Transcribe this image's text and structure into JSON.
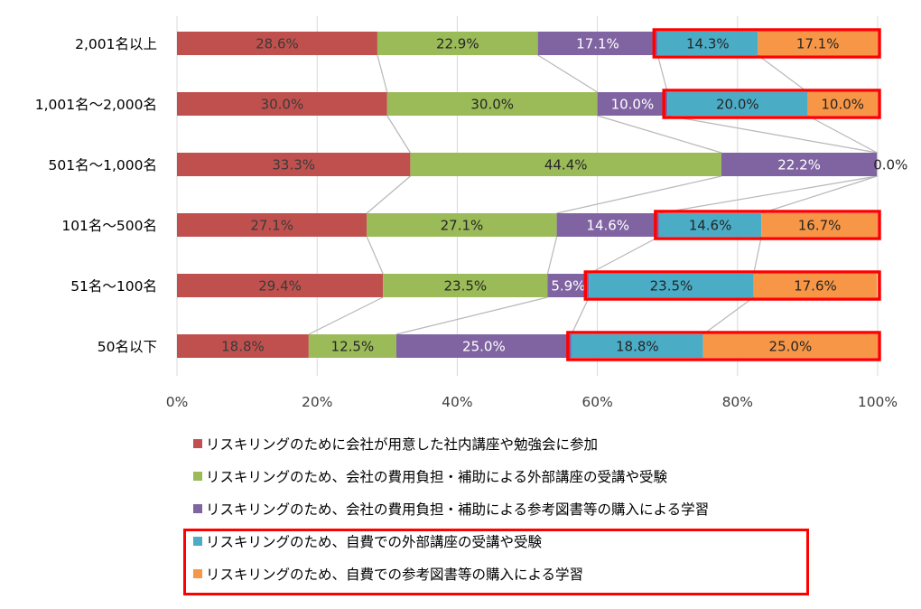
{
  "chart_data": {
    "type": "bar",
    "orientation": "horizontal",
    "stacked": "percent",
    "categories": [
      "2,001名以上",
      "1,001名～2,000名",
      "501名～1,000名",
      "101名～500名",
      "51名～100名",
      "50名以下"
    ],
    "series": [
      {
        "name": "リスキリングのために会社が用意した社内講座や勉強会に参加",
        "color": "#c0504d",
        "values": [
          28.6,
          30.0,
          33.3,
          27.1,
          29.4,
          18.8
        ],
        "labels": [
          "28.6%",
          "30.0%",
          "33.3%",
          "27.1%",
          "29.4%",
          "18.8%"
        ]
      },
      {
        "name": "リスキリングのため、会社の費用負担・補助による外部講座の受講や受験",
        "color": "#9bbb59",
        "values": [
          22.9,
          30.0,
          44.4,
          27.1,
          23.5,
          12.5
        ],
        "labels": [
          "22.9%",
          "30.0%",
          "44.4%",
          "27.1%",
          "23.5%",
          "12.5%"
        ]
      },
      {
        "name": "リスキリングのため、会社の費用負担・補助による参考図書等の購入による学習",
        "color": "#8064a2",
        "values": [
          17.1,
          10.0,
          22.2,
          14.6,
          5.9,
          25.0
        ],
        "labels": [
          "17.1%",
          "10.0%",
          "22.2%",
          "14.6%",
          "5.9%",
          "25.0%"
        ]
      },
      {
        "name": "リスキリングのため、自費での外部講座の受講や受験",
        "color": "#4bacc6",
        "values": [
          14.3,
          20.0,
          0.0,
          14.6,
          23.5,
          18.8
        ],
        "labels": [
          "14.3%",
          "20.0%",
          "",
          "14.6%",
          "23.5%",
          "18.8%"
        ]
      },
      {
        "name": "リスキリングのため、自費での参考図書等の購入による学習",
        "color": "#f79646",
        "values": [
          17.1,
          10.0,
          0.0,
          16.7,
          17.6,
          25.0
        ],
        "labels": [
          "17.1%",
          "10.0%",
          "0.0%",
          "16.7%",
          "17.6%",
          "25.0%"
        ]
      }
    ],
    "x_ticks": [
      "0%",
      "20%",
      "40%",
      "60%",
      "80%",
      "100%"
    ],
    "xlim": [
      0,
      100
    ],
    "grid": true,
    "series_lines": true,
    "legend_position": "bottom",
    "highlight": {
      "color": "#ff0000",
      "series": [
        3,
        4
      ],
      "rows": [
        0,
        1,
        3,
        4,
        5
      ],
      "legend_items": [
        3,
        4
      ]
    }
  }
}
